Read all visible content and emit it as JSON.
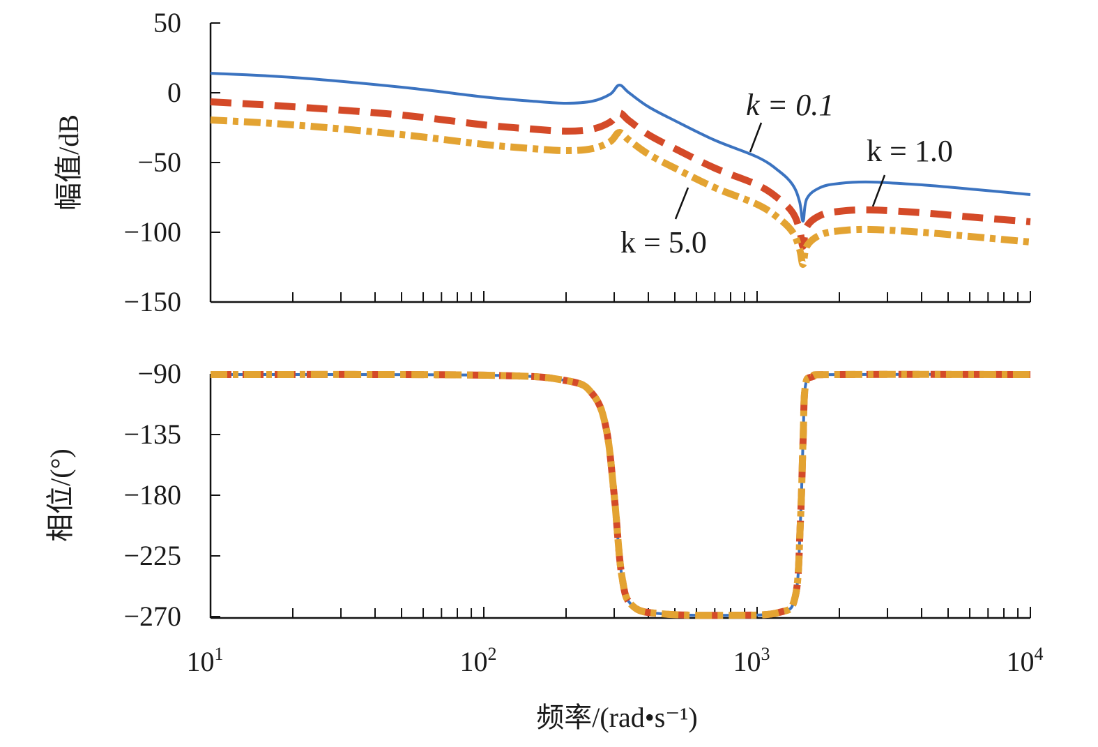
{
  "chart_data": [
    {
      "type": "line",
      "title": "",
      "ylabel": "幅值/dB",
      "xscale": "log",
      "xlim": [
        10,
        10000
      ],
      "ylim": [
        -150,
        50
      ],
      "yticks": [
        50,
        0,
        -50,
        -100,
        -150
      ],
      "ytick_labels": [
        "50",
        "0",
        "−50",
        "−100",
        "−150"
      ],
      "grid": false,
      "x": [
        10,
        20,
        50,
        100,
        150,
        200,
        250,
        290,
        313,
        340,
        400,
        500,
        700,
        1000,
        1200,
        1350,
        1430,
        1473,
        1520,
        1700,
        2000,
        2600,
        4000,
        6000,
        10000
      ],
      "series": [
        {
          "name": "k = 0.1",
          "color": "#3b73c0",
          "style": "solid",
          "values": [
            14,
            11,
            4,
            -3,
            -6,
            -7.5,
            -6,
            -1,
            5.5,
            0,
            -10,
            -20,
            -34,
            -46,
            -56,
            -66,
            -78,
            -92,
            -76,
            -68,
            -65,
            -64,
            -66,
            -69,
            -73
          ]
        },
        {
          "name": "k = 1.0",
          "color": "#d44a28",
          "style": "dashed",
          "values": [
            -6.5,
            -10,
            -16,
            -23,
            -26,
            -27.5,
            -26,
            -21,
            -14.5,
            -20,
            -30,
            -40,
            -54,
            -66,
            -76,
            -86,
            -98,
            -110,
            -96,
            -88,
            -85,
            -84,
            -86,
            -89,
            -92.5
          ]
        },
        {
          "name": "k = 5.0",
          "color": "#e3a332",
          "style": "dashdot",
          "values": [
            -19.5,
            -23,
            -30,
            -37,
            -40,
            -41.5,
            -40,
            -35,
            -28.5,
            -34,
            -44,
            -54,
            -68,
            -80,
            -90,
            -100,
            -112,
            -123,
            -110,
            -102,
            -99,
            -98,
            -100,
            -103,
            -107
          ]
        }
      ],
      "annotations": [
        "k = 0.1",
        "k = 1.0",
        "k = 5.0"
      ]
    },
    {
      "type": "line",
      "title": "",
      "xlabel": "频率/(rad•s⁻¹)",
      "ylabel": "相位/(°)",
      "xscale": "log",
      "xlim": [
        10,
        10000
      ],
      "ylim": [
        -270,
        -90
      ],
      "yticks": [
        -90,
        -135,
        -180,
        -225,
        -270
      ],
      "ytick_labels": [
        "−90",
        "−135",
        "−180",
        "−225",
        "−270"
      ],
      "xticks": [
        10,
        100,
        1000,
        10000
      ],
      "xtick_base": [
        "10",
        "10",
        "10",
        "10"
      ],
      "xtick_exp": [
        "1",
        "2",
        "3",
        "4"
      ],
      "grid": false,
      "x": [
        10,
        100,
        200,
        250,
        280,
        300,
        320,
        350,
        450,
        800,
        1200,
        1380,
        1440,
        1473,
        1500,
        1600,
        2000,
        10000
      ],
      "series": [
        {
          "name": "k = 0.1",
          "color": "#3b73c0",
          "style": "solid",
          "values": [
            -90.5,
            -91,
            -95,
            -105,
            -130,
            -180,
            -240,
            -262,
            -268,
            -269,
            -267,
            -255,
            -200,
            -140,
            -100,
            -92,
            -90.5,
            -90.5
          ]
        },
        {
          "name": "k = 1.0",
          "color": "#d44a28",
          "style": "dashed",
          "values": [
            -90.5,
            -91,
            -95,
            -105,
            -130,
            -180,
            -240,
            -262,
            -268,
            -269,
            -267,
            -255,
            -200,
            -140,
            -100,
            -92,
            -90.5,
            -90.5
          ]
        },
        {
          "name": "k = 5.0",
          "color": "#e3a332",
          "style": "dashdot",
          "values": [
            -90.5,
            -91,
            -95,
            -105,
            -130,
            -180,
            -240,
            -262,
            -268,
            -269,
            -267,
            -255,
            -200,
            -140,
            -100,
            -92,
            -90.5,
            -90.5
          ]
        }
      ]
    }
  ]
}
